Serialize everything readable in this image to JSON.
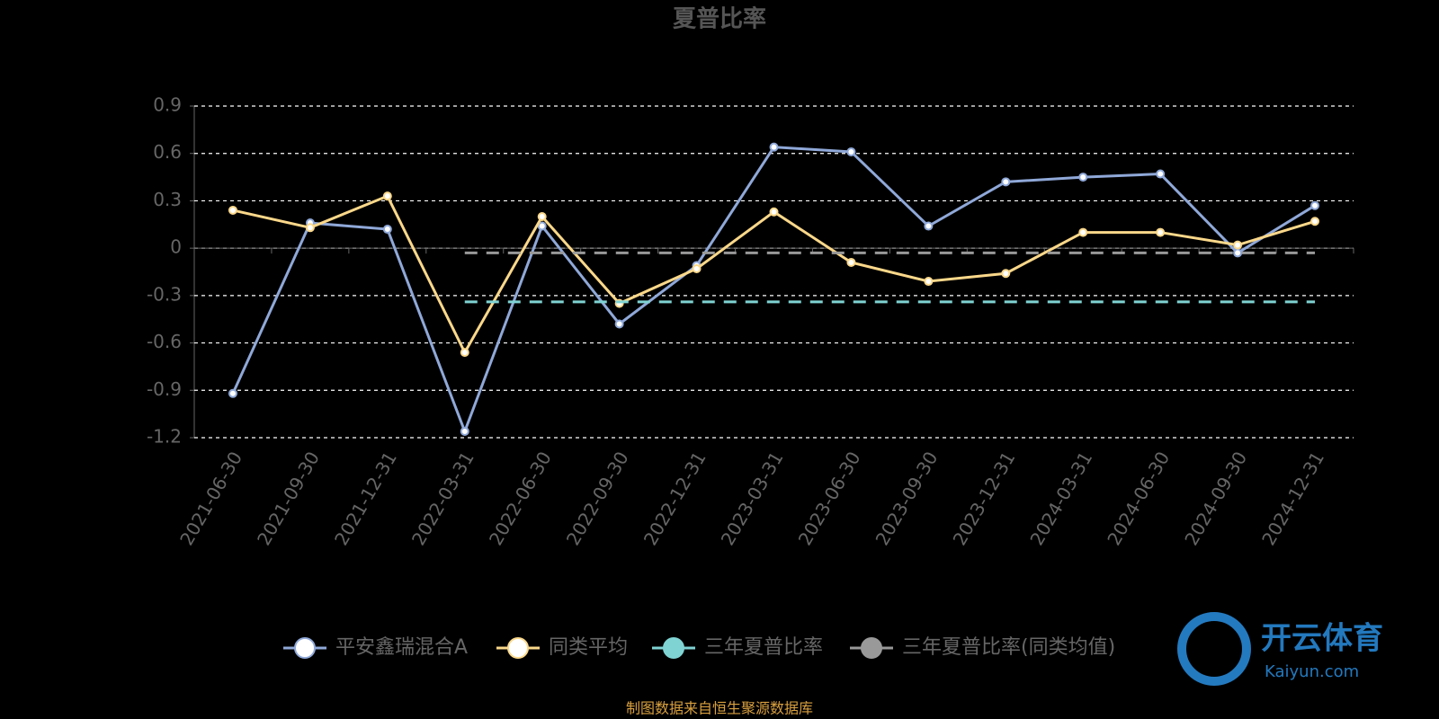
{
  "chart_data": {
    "type": "line",
    "title": "夏普比率",
    "categories": [
      "2021-06-30",
      "2021-09-30",
      "2021-12-31",
      "2022-03-31",
      "2022-06-30",
      "2022-09-30",
      "2022-12-31",
      "2023-03-31",
      "2023-06-30",
      "2023-09-30",
      "2023-12-31",
      "2024-03-31",
      "2024-06-30",
      "2024-09-30",
      "2024-12-31"
    ],
    "series": [
      {
        "name": "平安鑫瑞混合A",
        "color": "#8fa8d8",
        "values": [
          -0.92,
          0.16,
          0.12,
          -1.16,
          0.14,
          -0.48,
          -0.11,
          0.64,
          0.61,
          0.14,
          0.42,
          0.45,
          0.47,
          -0.03,
          0.27
        ]
      },
      {
        "name": "同类平均",
        "color": "#fbd88a",
        "values": [
          0.24,
          0.13,
          0.33,
          -0.66,
          0.2,
          -0.35,
          -0.13,
          0.23,
          -0.09,
          -0.21,
          -0.16,
          0.1,
          0.1,
          0.02,
          0.17
        ]
      },
      {
        "name": "三年夏普比率",
        "color": "#7fd3d3",
        "dash": true,
        "values": [
          null,
          null,
          null,
          -0.34,
          -0.34,
          -0.34,
          -0.34,
          -0.34,
          -0.34,
          -0.34,
          -0.34,
          -0.34,
          -0.34,
          -0.34,
          -0.34
        ]
      },
      {
        "name": "三年夏普比率(同类均值)",
        "color": "#999999",
        "dash": true,
        "values": [
          null,
          null,
          null,
          -0.03,
          -0.03,
          -0.03,
          -0.03,
          -0.03,
          -0.03,
          -0.03,
          -0.03,
          -0.03,
          -0.03,
          -0.03,
          -0.03
        ]
      }
    ],
    "ylim": [
      -1.2,
      0.9
    ],
    "yticks": [
      -1.2,
      -0.9,
      -0.6,
      -0.3,
      0,
      0.3,
      0.6,
      0.9
    ],
    "grid": true,
    "legend": "bottom",
    "source": "制图数据来自恒生聚源数据库"
  },
  "watermark": {
    "title": "开云体育",
    "url": "Kaiyun.com"
  }
}
